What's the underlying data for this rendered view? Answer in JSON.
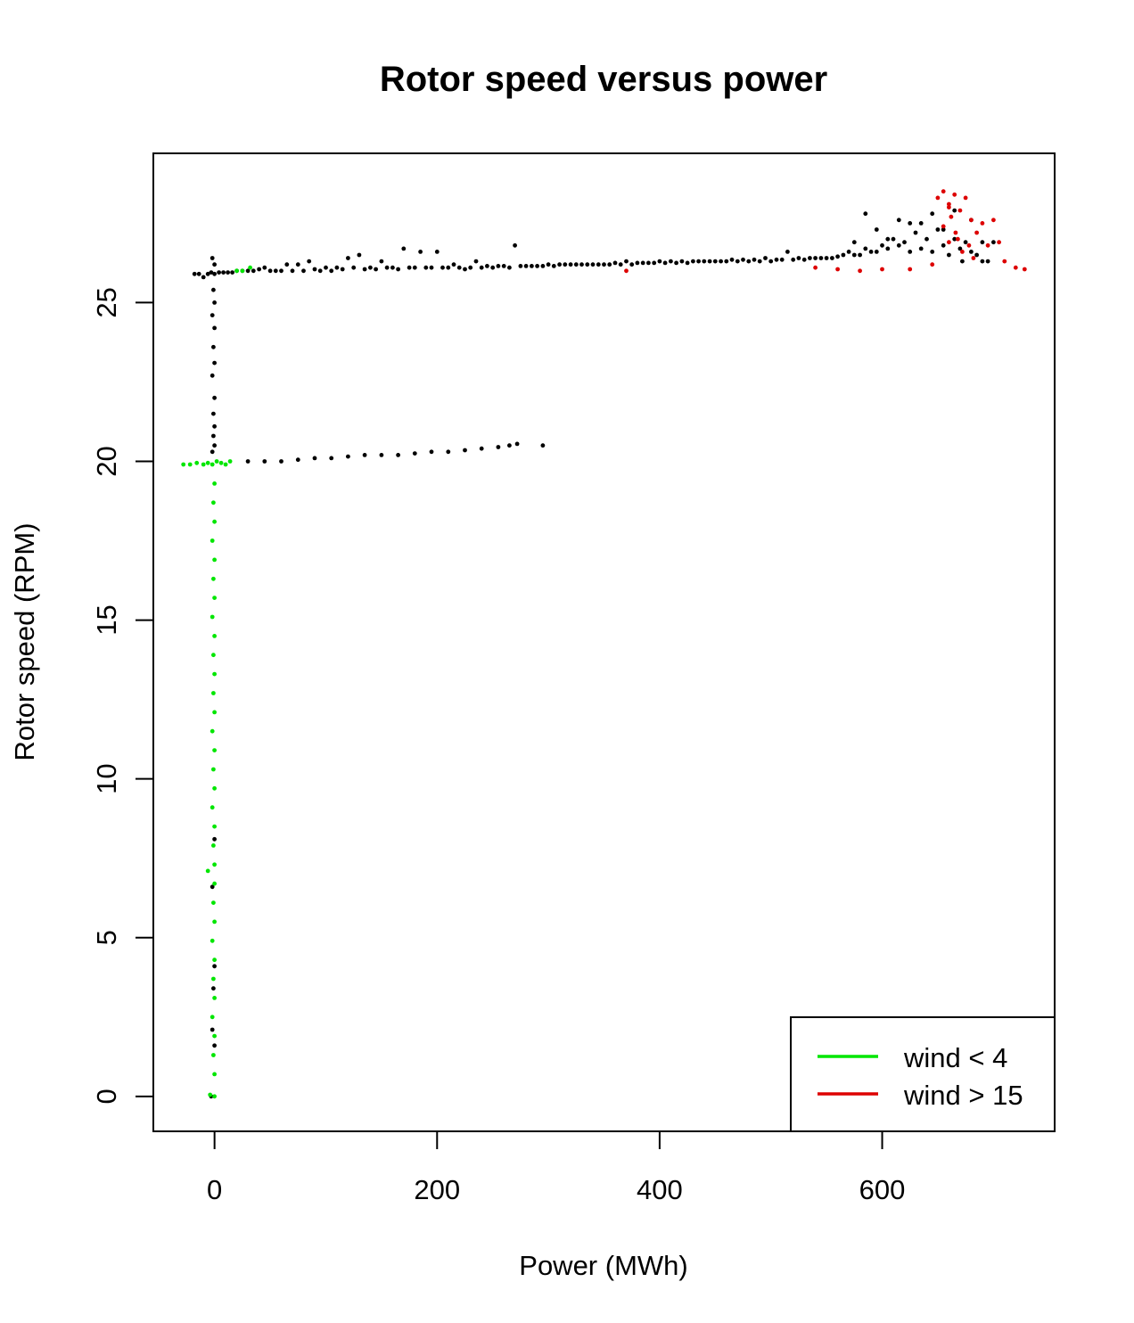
{
  "chart_data": {
    "type": "scatter",
    "title": "Rotor speed versus power",
    "xlabel": "Power (MWh)",
    "ylabel": "Rotor speed (RPM)",
    "xlim": [
      -55,
      755
    ],
    "ylim": [
      -1.1,
      29.7
    ],
    "xticks": [
      0,
      200,
      400,
      600
    ],
    "yticks": [
      0,
      5,
      10,
      15,
      20,
      25
    ],
    "grid": false,
    "legend": {
      "position": "bottom-right",
      "entries": [
        {
          "label": "wind < 4",
          "color": "#00e600"
        },
        {
          "label": "wind > 15",
          "color": "#dd0000"
        }
      ]
    },
    "series": [
      {
        "color": "#000000",
        "points": [
          [
            -18,
            25.9
          ],
          [
            -14,
            25.9
          ],
          [
            -10,
            25.8
          ],
          [
            -6,
            25.9
          ],
          [
            -3,
            25.95
          ],
          [
            0,
            25.9
          ],
          [
            4,
            25.95
          ],
          [
            8,
            25.95
          ],
          [
            12,
            25.95
          ],
          [
            16,
            25.95
          ],
          [
            20,
            26.0
          ],
          [
            25,
            26.0
          ],
          [
            30,
            26.0
          ],
          [
            35,
            26.0
          ],
          [
            40,
            26.05
          ],
          [
            45,
            26.1
          ],
          [
            50,
            26.0
          ],
          [
            55,
            26.0
          ],
          [
            60,
            26.0
          ],
          [
            65,
            26.2
          ],
          [
            70,
            26.0
          ],
          [
            75,
            26.2
          ],
          [
            80,
            26.0
          ],
          [
            85,
            26.3
          ],
          [
            90,
            26.05
          ],
          [
            95,
            26.0
          ],
          [
            100,
            26.1
          ],
          [
            105,
            26.0
          ],
          [
            110,
            26.1
          ],
          [
            115,
            26.05
          ],
          [
            120,
            26.4
          ],
          [
            125,
            26.1
          ],
          [
            130,
            26.5
          ],
          [
            135,
            26.05
          ],
          [
            140,
            26.1
          ],
          [
            145,
            26.05
          ],
          [
            150,
            26.3
          ],
          [
            155,
            26.1
          ],
          [
            160,
            26.1
          ],
          [
            165,
            26.05
          ],
          [
            170,
            26.7
          ],
          [
            175,
            26.1
          ],
          [
            180,
            26.1
          ],
          [
            185,
            26.6
          ],
          [
            190,
            26.1
          ],
          [
            195,
            26.1
          ],
          [
            200,
            26.6
          ],
          [
            205,
            26.1
          ],
          [
            210,
            26.1
          ],
          [
            215,
            26.2
          ],
          [
            220,
            26.1
          ],
          [
            225,
            26.05
          ],
          [
            230,
            26.1
          ],
          [
            235,
            26.3
          ],
          [
            240,
            26.1
          ],
          [
            245,
            26.15
          ],
          [
            250,
            26.1
          ],
          [
            255,
            26.15
          ],
          [
            260,
            26.15
          ],
          [
            265,
            26.1
          ],
          [
            270,
            26.8
          ],
          [
            275,
            26.15
          ],
          [
            280,
            26.15
          ],
          [
            285,
            26.15
          ],
          [
            290,
            26.15
          ],
          [
            295,
            26.15
          ],
          [
            300,
            26.2
          ],
          [
            305,
            26.15
          ],
          [
            310,
            26.2
          ],
          [
            315,
            26.2
          ],
          [
            320,
            26.2
          ],
          [
            325,
            26.2
          ],
          [
            330,
            26.2
          ],
          [
            335,
            26.2
          ],
          [
            340,
            26.2
          ],
          [
            345,
            26.2
          ],
          [
            350,
            26.2
          ],
          [
            355,
            26.2
          ],
          [
            360,
            26.25
          ],
          [
            365,
            26.2
          ],
          [
            370,
            26.3
          ],
          [
            375,
            26.2
          ],
          [
            380,
            26.25
          ],
          [
            385,
            26.25
          ],
          [
            390,
            26.25
          ],
          [
            395,
            26.25
          ],
          [
            400,
            26.3
          ],
          [
            405,
            26.25
          ],
          [
            410,
            26.3
          ],
          [
            415,
            26.25
          ],
          [
            420,
            26.3
          ],
          [
            425,
            26.25
          ],
          [
            430,
            26.3
          ],
          [
            435,
            26.3
          ],
          [
            440,
            26.3
          ],
          [
            445,
            26.3
          ],
          [
            450,
            26.3
          ],
          [
            455,
            26.3
          ],
          [
            460,
            26.3
          ],
          [
            465,
            26.35
          ],
          [
            470,
            26.3
          ],
          [
            475,
            26.35
          ],
          [
            480,
            26.3
          ],
          [
            485,
            26.35
          ],
          [
            490,
            26.3
          ],
          [
            495,
            26.4
          ],
          [
            500,
            26.3
          ],
          [
            505,
            26.35
          ],
          [
            510,
            26.35
          ],
          [
            515,
            26.6
          ],
          [
            520,
            26.35
          ],
          [
            525,
            26.4
          ],
          [
            530,
            26.35
          ],
          [
            535,
            26.4
          ],
          [
            540,
            26.4
          ],
          [
            545,
            26.4
          ],
          [
            550,
            26.4
          ],
          [
            555,
            26.4
          ],
          [
            560,
            26.45
          ],
          [
            565,
            26.5
          ],
          [
            570,
            26.6
          ],
          [
            575,
            26.5
          ],
          [
            580,
            26.5
          ],
          [
            585,
            26.7
          ],
          [
            590,
            26.6
          ],
          [
            595,
            26.6
          ],
          [
            600,
            26.8
          ],
          [
            605,
            26.7
          ],
          [
            610,
            27.0
          ],
          [
            615,
            26.8
          ],
          [
            620,
            26.9
          ],
          [
            625,
            26.6
          ],
          [
            630,
            27.2
          ],
          [
            635,
            26.7
          ],
          [
            640,
            27.0
          ],
          [
            645,
            26.6
          ],
          [
            650,
            27.3
          ],
          [
            655,
            26.8
          ],
          [
            660,
            26.5
          ],
          [
            665,
            27.0
          ],
          [
            670,
            26.7
          ],
          [
            675,
            26.9
          ],
          [
            680,
            26.6
          ],
          [
            685,
            26.5
          ],
          [
            690,
            26.9
          ],
          [
            695,
            26.3
          ],
          [
            700,
            26.9
          ],
          [
            575,
            26.9
          ],
          [
            585,
            27.8
          ],
          [
            595,
            27.3
          ],
          [
            605,
            27.0
          ],
          [
            615,
            27.6
          ],
          [
            625,
            27.5
          ],
          [
            635,
            27.5
          ],
          [
            645,
            27.8
          ],
          [
            655,
            27.3
          ],
          [
            665,
            27.9
          ],
          [
            672,
            26.3
          ],
          [
            680,
            27.6
          ],
          [
            690,
            26.3
          ],
          [
            -2,
            26.4
          ],
          [
            0,
            26.2
          ],
          [
            -1,
            25.4
          ],
          [
            0,
            25.0
          ],
          [
            -2,
            24.6
          ],
          [
            0,
            24.2
          ],
          [
            -1,
            23.6
          ],
          [
            0,
            23.1
          ],
          [
            -2,
            22.7
          ],
          [
            0,
            22.0
          ],
          [
            -1,
            21.5
          ],
          [
            0,
            21.1
          ],
          [
            -1,
            20.8
          ],
          [
            0,
            20.5
          ],
          [
            -2,
            20.3
          ],
          [
            30,
            20.0
          ],
          [
            45,
            20.0
          ],
          [
            60,
            20.0
          ],
          [
            75,
            20.05
          ],
          [
            90,
            20.1
          ],
          [
            105,
            20.1
          ],
          [
            120,
            20.15
          ],
          [
            135,
            20.2
          ],
          [
            150,
            20.2
          ],
          [
            165,
            20.2
          ],
          [
            180,
            20.25
          ],
          [
            195,
            20.3
          ],
          [
            210,
            20.3
          ],
          [
            225,
            20.35
          ],
          [
            240,
            20.4
          ],
          [
            255,
            20.45
          ],
          [
            265,
            20.5
          ],
          [
            272,
            20.55
          ],
          [
            295,
            20.5
          ],
          [
            0,
            8.1
          ],
          [
            -2,
            6.6
          ],
          [
            0,
            4.1
          ],
          [
            -1,
            3.4
          ],
          [
            -2,
            2.1
          ],
          [
            0,
            1.6
          ],
          [
            -3,
            0.0
          ]
        ]
      },
      {
        "color": "#00e600",
        "points": [
          [
            -28,
            19.9
          ],
          [
            -22,
            19.9
          ],
          [
            -16,
            19.95
          ],
          [
            -10,
            19.9
          ],
          [
            -6,
            19.95
          ],
          [
            -2,
            19.9
          ],
          [
            2,
            20.0
          ],
          [
            6,
            19.95
          ],
          [
            10,
            19.9
          ],
          [
            14,
            20.0
          ],
          [
            0,
            19.3
          ],
          [
            -1,
            18.7
          ],
          [
            0,
            18.1
          ],
          [
            -2,
            17.5
          ],
          [
            0,
            16.9
          ],
          [
            -1,
            16.3
          ],
          [
            0,
            15.7
          ],
          [
            -2,
            15.1
          ],
          [
            0,
            14.5
          ],
          [
            -1,
            13.9
          ],
          [
            0,
            13.3
          ],
          [
            -1,
            12.7
          ],
          [
            0,
            12.1
          ],
          [
            -2,
            11.5
          ],
          [
            0,
            10.9
          ],
          [
            -1,
            10.3
          ],
          [
            0,
            9.7
          ],
          [
            -2,
            9.1
          ],
          [
            0,
            8.5
          ],
          [
            -1,
            7.9
          ],
          [
            0,
            7.3
          ],
          [
            -6,
            7.1
          ],
          [
            0,
            6.7
          ],
          [
            -1,
            6.1
          ],
          [
            0,
            5.5
          ],
          [
            -2,
            4.9
          ],
          [
            0,
            4.3
          ],
          [
            -1,
            3.7
          ],
          [
            0,
            3.1
          ],
          [
            -2,
            2.5
          ],
          [
            0,
            1.9
          ],
          [
            -1,
            1.3
          ],
          [
            0,
            0.7
          ],
          [
            0,
            0.0
          ],
          [
            -4,
            0.05
          ],
          [
            20,
            26.0
          ],
          [
            25,
            26.0
          ],
          [
            32,
            26.1
          ]
        ]
      },
      {
        "color": "#dd0000",
        "points": [
          [
            650,
            28.3
          ],
          [
            655,
            28.5
          ],
          [
            660,
            28.1
          ],
          [
            665,
            28.4
          ],
          [
            670,
            27.9
          ],
          [
            675,
            28.3
          ],
          [
            680,
            27.6
          ],
          [
            685,
            27.2
          ],
          [
            690,
            27.5
          ],
          [
            695,
            26.8
          ],
          [
            700,
            27.6
          ],
          [
            705,
            26.9
          ],
          [
            710,
            26.3
          ],
          [
            720,
            26.1
          ],
          [
            728,
            26.05
          ],
          [
            655,
            27.4
          ],
          [
            662,
            27.7
          ],
          [
            668,
            27.0
          ],
          [
            672,
            26.6
          ],
          [
            678,
            26.8
          ],
          [
            682,
            26.4
          ],
          [
            660,
            26.9
          ],
          [
            645,
            26.2
          ],
          [
            625,
            26.05
          ],
          [
            600,
            26.05
          ],
          [
            580,
            26.0
          ],
          [
            560,
            26.05
          ],
          [
            540,
            26.1
          ],
          [
            370,
            26.0
          ],
          [
            660,
            28.0
          ],
          [
            666,
            27.2
          ]
        ]
      }
    ]
  }
}
